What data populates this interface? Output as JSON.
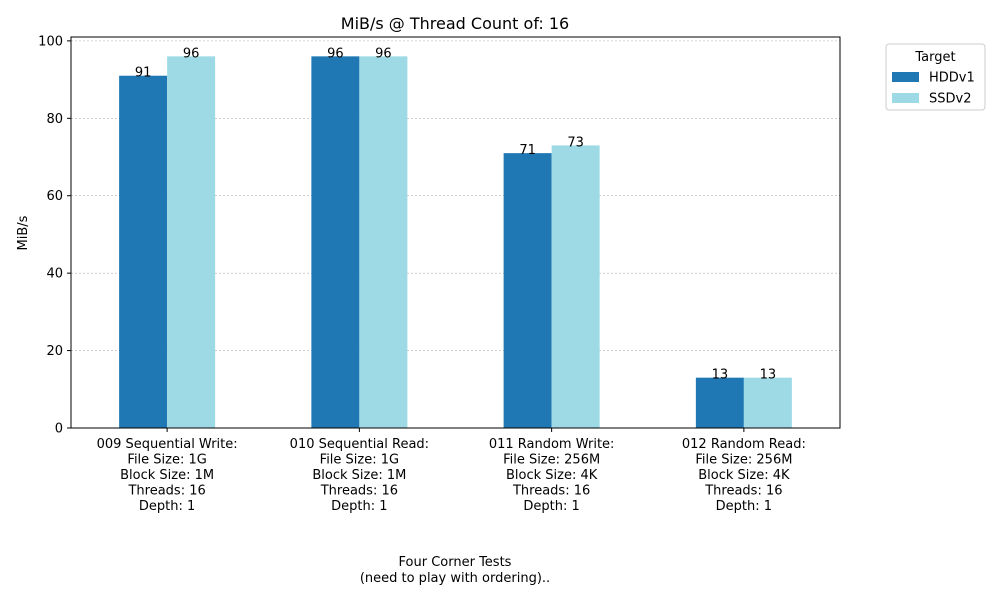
{
  "chart_data": {
    "type": "bar",
    "title": "MiB/s @ Thread Count of: 16",
    "ylabel": "MiB/s",
    "xlabel_lines": [
      "Four Corner Tests",
      "(need to play with ordering).."
    ],
    "ylim": [
      0,
      101
    ],
    "yticks": [
      0,
      20,
      40,
      60,
      80,
      100
    ],
    "grid": "y-dashed",
    "legend": {
      "title": "Target",
      "placement": "outside-top-right"
    },
    "categories": [
      [
        "009 Sequential Write:",
        "File Size: 1G",
        "Block Size: 1M",
        "Threads: 16",
        "Depth: 1"
      ],
      [
        "010 Sequential Read:",
        "File Size: 1G",
        "Block Size: 1M",
        "Threads: 16",
        "Depth: 1"
      ],
      [
        "011 Random Write:",
        "File Size: 256M",
        "Block Size: 4K",
        "Threads: 16",
        "Depth: 1"
      ],
      [
        "012 Random Read:",
        "File Size: 256M",
        "Block Size: 4K",
        "Threads: 16",
        "Depth: 1"
      ]
    ],
    "series": [
      {
        "name": "HDDv1",
        "color": "#1f77b4",
        "values": [
          91,
          96,
          71,
          13
        ]
      },
      {
        "name": "SSDv2",
        "color": "#9edae5",
        "values": [
          96,
          96,
          73,
          13
        ]
      }
    ]
  }
}
